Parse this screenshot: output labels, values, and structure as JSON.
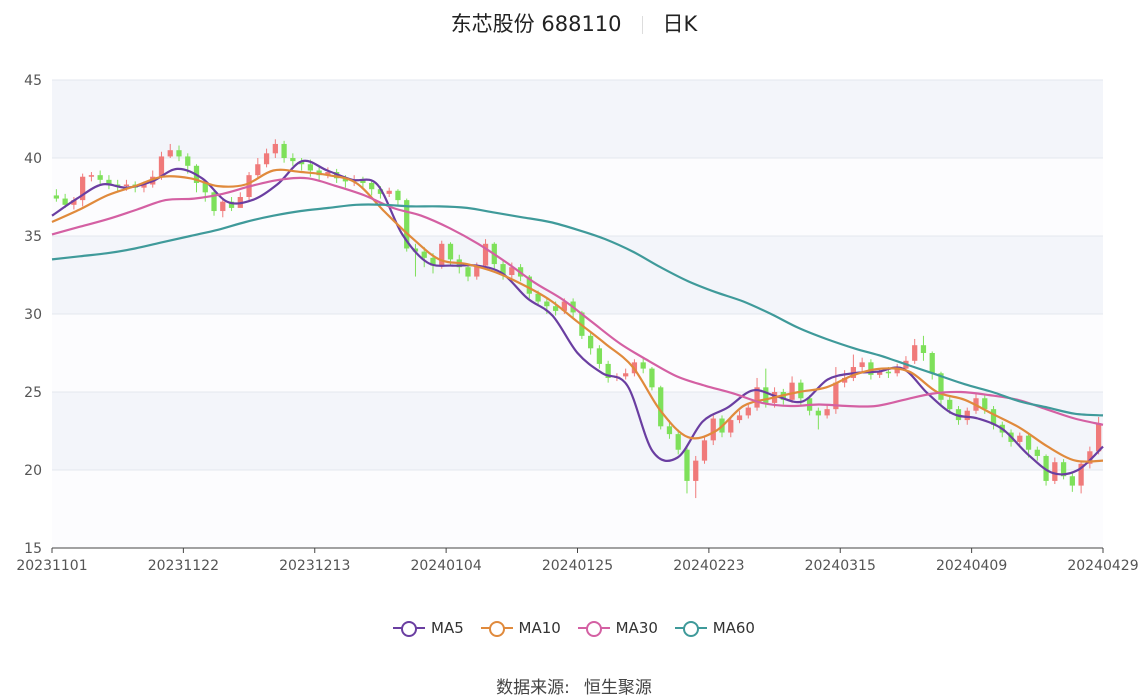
{
  "header": {
    "stock": "东芯股份 688110",
    "period": "日K"
  },
  "source": {
    "label": "数据来源:",
    "value": "恒生聚源"
  },
  "legend": [
    {
      "name": "MA5",
      "color": "#6a3ea1"
    },
    {
      "name": "MA10",
      "color": "#e08a3c"
    },
    {
      "name": "MA30",
      "color": "#d460a3"
    },
    {
      "name": "MA60",
      "color": "#3f9a9a"
    }
  ],
  "colors": {
    "up": "#f07a7a",
    "down": "#7ee05a",
    "band": "#f3f5fa",
    "grid": "#e3e7ef"
  },
  "chart_data": {
    "type": "candlestick",
    "ylim": [
      15,
      45
    ],
    "yticks": [
      15,
      20,
      25,
      30,
      35,
      40,
      45
    ],
    "xtick_labels": [
      "20231101",
      "20231122",
      "20231213",
      "20240104",
      "20240125",
      "20240223",
      "20240315",
      "20240409",
      "20240429"
    ],
    "num_days": 120,
    "candles": [
      [
        37.6,
        37.4,
        38.0,
        37.2
      ],
      [
        37.4,
        37.0,
        37.7,
        36.8
      ],
      [
        37.0,
        37.3,
        37.5,
        36.7
      ],
      [
        37.3,
        38.8,
        39.0,
        36.9
      ],
      [
        38.8,
        38.9,
        39.1,
        38.5
      ],
      [
        38.9,
        38.6,
        39.2,
        38.3
      ],
      [
        38.6,
        38.3,
        38.9,
        38.0
      ],
      [
        38.3,
        38.2,
        38.6,
        37.8
      ],
      [
        38.2,
        38.3,
        38.6,
        37.9
      ],
      [
        38.3,
        38.1,
        38.5,
        37.8
      ],
      [
        38.1,
        38.3,
        38.5,
        37.8
      ],
      [
        38.3,
        38.8,
        39.2,
        38.1
      ],
      [
        38.8,
        40.1,
        40.4,
        38.6
      ],
      [
        40.1,
        40.5,
        40.9,
        40.0
      ],
      [
        40.5,
        40.1,
        40.8,
        39.8
      ],
      [
        40.1,
        39.5,
        40.3,
        39.0
      ],
      [
        39.5,
        38.4,
        39.6,
        37.8
      ],
      [
        38.4,
        37.8,
        38.5,
        37.2
      ],
      [
        37.8,
        36.6,
        37.9,
        36.3
      ],
      [
        36.6,
        37.2,
        37.4,
        36.2
      ],
      [
        37.2,
        36.8,
        37.5,
        36.6
      ],
      [
        36.8,
        37.5,
        37.8,
        36.9
      ],
      [
        37.5,
        38.9,
        39.1,
        37.3
      ],
      [
        38.9,
        39.6,
        40.0,
        38.7
      ],
      [
        39.6,
        40.3,
        40.6,
        39.4
      ],
      [
        40.3,
        40.9,
        41.2,
        40.0
      ],
      [
        40.9,
        40.0,
        41.1,
        39.7
      ],
      [
        40.0,
        39.8,
        40.3,
        39.5
      ],
      [
        39.8,
        39.6,
        40.0,
        39.2
      ],
      [
        39.6,
        39.2,
        39.9,
        38.8
      ],
      [
        39.2,
        38.9,
        39.5,
        38.6
      ],
      [
        38.9,
        39.1,
        39.4,
        38.7
      ],
      [
        39.1,
        38.7,
        39.3,
        38.4
      ],
      [
        38.7,
        38.5,
        38.9,
        38.1
      ],
      [
        38.5,
        38.6,
        38.9,
        38.2
      ],
      [
        38.6,
        38.4,
        38.8,
        38.0
      ],
      [
        38.4,
        38.0,
        38.6,
        37.6
      ],
      [
        38.0,
        37.7,
        38.2,
        37.4
      ],
      [
        37.7,
        37.9,
        38.1,
        37.5
      ],
      [
        37.9,
        37.3,
        38.0,
        37.0
      ],
      [
        37.3,
        34.2,
        37.4,
        34.0
      ],
      [
        34.2,
        34.0,
        34.5,
        32.4
      ],
      [
        34.0,
        33.6,
        34.3,
        33.0
      ],
      [
        33.6,
        33.1,
        33.9,
        32.6
      ],
      [
        33.1,
        34.5,
        34.7,
        32.9
      ],
      [
        34.5,
        33.5,
        34.6,
        33.1
      ],
      [
        33.5,
        33.0,
        33.8,
        32.6
      ],
      [
        33.0,
        32.4,
        33.2,
        32.1
      ],
      [
        32.4,
        33.1,
        33.3,
        32.2
      ],
      [
        33.1,
        34.5,
        34.8,
        33.0
      ],
      [
        34.5,
        33.2,
        34.6,
        32.9
      ],
      [
        33.2,
        32.5,
        33.4,
        32.2
      ],
      [
        32.5,
        33.0,
        33.3,
        32.3
      ],
      [
        33.0,
        32.4,
        33.2,
        32.1
      ],
      [
        32.4,
        31.3,
        32.5,
        31.0
      ],
      [
        31.3,
        30.8,
        31.5,
        30.5
      ],
      [
        30.8,
        30.5,
        31.0,
        30.0
      ],
      [
        30.5,
        30.2,
        30.8,
        29.9
      ],
      [
        30.2,
        30.8,
        31.0,
        30.0
      ],
      [
        30.8,
        30.1,
        31.0,
        29.8
      ],
      [
        30.1,
        28.6,
        30.2,
        28.4
      ],
      [
        28.6,
        27.8,
        28.8,
        27.4
      ],
      [
        27.8,
        26.8,
        28.0,
        26.5
      ],
      [
        26.8,
        25.9,
        27.0,
        25.6
      ],
      [
        25.9,
        26.0,
        26.2,
        25.7
      ],
      [
        26.0,
        26.2,
        26.5,
        25.8
      ],
      [
        26.2,
        26.9,
        27.1,
        26.0
      ],
      [
        26.9,
        26.5,
        27.2,
        26.2
      ],
      [
        26.5,
        25.3,
        26.6,
        25.1
      ],
      [
        25.3,
        22.8,
        25.4,
        22.6
      ],
      [
        22.8,
        22.3,
        23.2,
        22.0
      ],
      [
        22.3,
        21.3,
        22.6,
        21.0
      ],
      [
        21.3,
        19.3,
        21.6,
        18.5
      ],
      [
        19.3,
        20.6,
        20.9,
        18.2
      ],
      [
        20.6,
        21.9,
        22.2,
        20.4
      ],
      [
        21.9,
        23.3,
        23.6,
        21.6
      ],
      [
        23.3,
        22.4,
        23.5,
        22.1
      ],
      [
        22.4,
        23.2,
        23.4,
        22.1
      ],
      [
        23.2,
        23.5,
        23.8,
        23.0
      ],
      [
        23.5,
        24.0,
        24.3,
        23.3
      ],
      [
        24.0,
        25.3,
        25.9,
        23.8
      ],
      [
        25.3,
        24.3,
        26.5,
        24.0
      ],
      [
        24.3,
        25.0,
        25.3,
        24.0
      ],
      [
        25.0,
        24.5,
        25.2,
        24.2
      ],
      [
        24.5,
        25.6,
        26.0,
        24.3
      ],
      [
        25.6,
        24.6,
        25.8,
        24.2
      ],
      [
        24.6,
        23.8,
        24.8,
        23.5
      ],
      [
        23.8,
        23.5,
        24.0,
        22.6
      ],
      [
        23.5,
        23.9,
        24.2,
        23.3
      ],
      [
        23.9,
        25.6,
        26.6,
        23.6
      ],
      [
        25.6,
        25.9,
        26.4,
        25.3
      ],
      [
        25.9,
        26.6,
        27.4,
        25.7
      ],
      [
        26.6,
        26.9,
        27.2,
        26.3
      ],
      [
        26.9,
        26.1,
        27.1,
        25.8
      ],
      [
        26.1,
        26.3,
        26.5,
        25.9
      ],
      [
        26.3,
        26.2,
        26.6,
        25.9
      ],
      [
        26.2,
        26.5,
        26.8,
        26.0
      ],
      [
        26.5,
        27.0,
        27.3,
        26.3
      ],
      [
        27.0,
        28.0,
        28.4,
        26.8
      ],
      [
        28.0,
        27.5,
        28.6,
        27.0
      ],
      [
        27.5,
        26.2,
        27.6,
        25.8
      ],
      [
        26.2,
        24.5,
        26.3,
        24.2
      ],
      [
        24.5,
        23.9,
        24.7,
        23.6
      ],
      [
        23.9,
        23.2,
        24.1,
        22.9
      ],
      [
        23.2,
        23.8,
        24.0,
        22.9
      ],
      [
        23.8,
        24.6,
        24.9,
        23.6
      ],
      [
        24.6,
        23.9,
        24.8,
        23.6
      ],
      [
        23.9,
        22.9,
        24.1,
        22.6
      ],
      [
        22.9,
        22.4,
        23.1,
        22.1
      ],
      [
        22.4,
        21.8,
        22.6,
        21.5
      ],
      [
        21.8,
        22.2,
        22.4,
        21.6
      ],
      [
        22.2,
        21.3,
        22.3,
        20.8
      ],
      [
        21.3,
        20.9,
        21.5,
        20.6
      ],
      [
        20.9,
        19.3,
        21.0,
        19.0
      ],
      [
        19.3,
        20.5,
        20.8,
        19.1
      ],
      [
        20.5,
        19.6,
        20.7,
        19.4
      ],
      [
        19.6,
        19.0,
        19.8,
        18.6
      ],
      [
        19.0,
        20.4,
        20.6,
        18.5
      ],
      [
        20.4,
        21.2,
        21.5,
        20.1
      ],
      [
        21.2,
        23.0,
        23.4,
        21.0
      ]
    ],
    "series": [
      {
        "name": "MA5",
        "values": [
          36.3,
          37.4,
          38.3,
          38.1,
          38.5,
          39.3,
          38.7,
          37.2,
          37.3,
          38.3,
          39.8,
          39.2,
          38.6,
          38.3,
          35.1,
          33.3,
          33.1,
          33.1,
          32.6,
          31.0,
          29.9,
          27.5,
          26.2,
          25.4,
          21.2,
          20.8,
          23.1,
          24.0,
          25.1,
          24.7,
          24.4,
          25.8,
          26.2,
          26.3,
          26.5,
          24.9,
          23.6,
          23.3,
          22.6,
          21.0,
          19.8,
          20.0,
          21.5
        ]
      },
      {
        "name": "MA10",
        "values": [
          35.9,
          36.7,
          37.6,
          38.2,
          38.8,
          38.7,
          38.2,
          38.3,
          39.2,
          39.1,
          38.9,
          38.4,
          36.6,
          34.9,
          33.5,
          33.2,
          32.7,
          31.9,
          30.9,
          29.5,
          28.1,
          26.6,
          23.8,
          22.1,
          22.5,
          24.1,
          24.6,
          25.0,
          25.3,
          26.1,
          26.5,
          26.3,
          25.0,
          24.5,
          23.6,
          22.7,
          21.5,
          20.6,
          20.6
        ]
      },
      {
        "name": "MA30",
        "values": [
          35.1,
          35.6,
          36.1,
          36.7,
          37.3,
          37.4,
          37.7,
          38.2,
          38.6,
          38.7,
          38.2,
          37.6,
          36.8,
          36.3,
          35.5,
          34.5,
          33.3,
          32.0,
          30.9,
          29.5,
          28.1,
          27.0,
          26.0,
          25.4,
          24.9,
          24.3,
          24.1,
          24.2,
          24.1,
          24.1,
          24.5,
          24.9,
          25.0,
          24.8,
          24.5,
          23.9,
          23.3,
          22.9
        ]
      },
      {
        "name": "MA60",
        "values": [
          33.5,
          33.7,
          33.9,
          34.2,
          34.6,
          35.0,
          35.4,
          35.9,
          36.3,
          36.6,
          36.8,
          37.0,
          37.0,
          36.9,
          36.9,
          36.8,
          36.5,
          36.2,
          35.9,
          35.4,
          34.8,
          34.0,
          33.0,
          32.1,
          31.4,
          30.8,
          30.0,
          29.1,
          28.4,
          27.8,
          27.3,
          26.7,
          26.1,
          25.5,
          25.0,
          24.4,
          24.0,
          23.6,
          23.5
        ]
      }
    ]
  }
}
